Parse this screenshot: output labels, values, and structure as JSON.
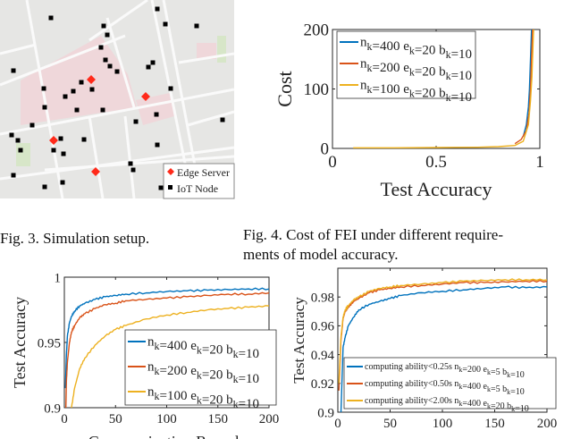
{
  "captions": {
    "fig3": "Fig. 3.  Simulation setup.",
    "fig4_line1": "Fig. 4.  Cost of FEI under different require-",
    "fig4_line2": "ments of model accuracy."
  },
  "map": {
    "legend": [
      {
        "label": "Edge Server",
        "marker": "diamond",
        "color": "#ff2a1a"
      },
      {
        "label": "IoT Node",
        "marker": "square",
        "color": "#000000"
      }
    ],
    "edge_server_count": 4,
    "iot_node_count": 40
  },
  "colors": {
    "blue": "#0072BD",
    "red": "#D95319",
    "yellow": "#EDB120"
  },
  "chart_data": [
    {
      "id": "cost",
      "type": "line",
      "xlabel": "Test Accuracy",
      "ylabel": "Cost",
      "xlim": [
        0,
        1
      ],
      "ylim": [
        0,
        200
      ],
      "xticks": [
        0,
        0.5,
        1
      ],
      "yticks": [
        0,
        100,
        200
      ],
      "xticklabels": [
        "0",
        "0.5",
        "1"
      ],
      "yticklabels": [
        "0",
        "100",
        "200"
      ],
      "legend_position": "top-left",
      "series": [
        {
          "name": "n_k=400 e_k=20 b_k=10",
          "color": "#0072BD",
          "x": [
            0.92,
            0.935,
            0.945,
            0.95,
            0.955,
            0.96
          ],
          "y": [
            20,
            40,
            70,
            100,
            150,
            200
          ]
        },
        {
          "name": "n_k=200 e_k=20 b_k=10",
          "color": "#D95319",
          "x": [
            0.88,
            0.91,
            0.935,
            0.948,
            0.955,
            0.96,
            0.965
          ],
          "y": [
            8,
            15,
            30,
            60,
            100,
            150,
            200
          ]
        },
        {
          "name": "n_k=100 e_k=20 b_k=10",
          "color": "#EDB120",
          "x": [
            0.1,
            0.3,
            0.5,
            0.7,
            0.8,
            0.88,
            0.92,
            0.945,
            0.955,
            0.962,
            0.967,
            0.97
          ],
          "y": [
            1,
            1,
            1.5,
            2,
            3,
            5,
            12,
            40,
            80,
            120,
            170,
            200
          ]
        }
      ]
    },
    {
      "id": "acc_nk",
      "type": "line",
      "xlabel": "Communication Rounds",
      "ylabel": "Test Accuracy",
      "xlim": [
        0,
        200
      ],
      "ylim": [
        0.9,
        1
      ],
      "xticks": [
        0,
        50,
        100,
        150,
        200
      ],
      "yticks": [
        0.9,
        0.95,
        1
      ],
      "xticklabels": [
        "0",
        "50",
        "100",
        "150",
        "200"
      ],
      "yticklabels": [
        "0.9",
        "0.95",
        "1"
      ],
      "legend_position": "bottom-right",
      "series": [
        {
          "name": "n_k=400 e_k=20 b_k=10",
          "color": "#0072BD",
          "x": [
            1,
            2,
            3,
            5,
            7,
            10,
            15,
            20,
            30,
            40,
            50,
            60,
            80,
            100,
            120,
            140,
            160,
            180,
            200
          ],
          "y": [
            0.915,
            0.94,
            0.955,
            0.965,
            0.97,
            0.974,
            0.978,
            0.98,
            0.983,
            0.985,
            0.986,
            0.987,
            0.988,
            0.989,
            0.9895,
            0.99,
            0.9905,
            0.991,
            0.991
          ]
        },
        {
          "name": "n_k=200 e_k=20 b_k=10",
          "color": "#D95319",
          "x": [
            1,
            2,
            3,
            5,
            7,
            10,
            15,
            20,
            30,
            40,
            50,
            60,
            80,
            100,
            120,
            140,
            160,
            180,
            200
          ],
          "y": [
            0.88,
            0.92,
            0.935,
            0.95,
            0.958,
            0.963,
            0.969,
            0.972,
            0.976,
            0.979,
            0.98,
            0.982,
            0.983,
            0.984,
            0.985,
            0.986,
            0.987,
            0.987,
            0.988
          ]
        },
        {
          "name": "n_k=100 e_k=20 b_k=10",
          "color": "#EDB120",
          "x": [
            7,
            10,
            15,
            20,
            30,
            40,
            50,
            60,
            80,
            100,
            120,
            140,
            160,
            180,
            200
          ],
          "y": [
            0.9,
            0.915,
            0.93,
            0.938,
            0.948,
            0.955,
            0.96,
            0.963,
            0.968,
            0.971,
            0.973,
            0.975,
            0.976,
            0.977,
            0.978
          ]
        }
      ]
    },
    {
      "id": "acc_compute",
      "type": "line",
      "xlabel": "",
      "ylabel": "Test Accuracy",
      "xlim": [
        0,
        200
      ],
      "ylim": [
        0.9,
        1
      ],
      "xticks": [
        0,
        50,
        100,
        150,
        200
      ],
      "yticks": [
        0.9,
        0.92,
        0.94,
        0.96,
        0.98
      ],
      "xticklabels": [
        "0",
        "50",
        "100",
        "150",
        "200"
      ],
      "yticklabels": [
        "0.9",
        "0.92",
        "0.94",
        "0.96",
        "0.98"
      ],
      "legend_position": "bottom-right",
      "series": [
        {
          "name": "computing ability<0.25s n_k=200 e_k=5   b_k=10",
          "color": "#0072BD",
          "x": [
            3,
            5,
            7,
            10,
            15,
            20,
            30,
            40,
            50,
            60,
            80,
            100,
            120,
            140,
            160,
            180,
            200
          ],
          "y": [
            0.9,
            0.945,
            0.952,
            0.96,
            0.966,
            0.971,
            0.975,
            0.977,
            0.979,
            0.981,
            0.983,
            0.984,
            0.985,
            0.986,
            0.987,
            0.9865,
            0.987
          ]
        },
        {
          "name": "computing ability<0.50s n_k=400 e_k=5   b_k=10",
          "color": "#D95319",
          "x": [
            1,
            3,
            5,
            7,
            10,
            15,
            20,
            30,
            40,
            50,
            60,
            80,
            100,
            120,
            140,
            160,
            180,
            200
          ],
          "y": [
            0.915,
            0.95,
            0.965,
            0.97,
            0.973,
            0.977,
            0.979,
            0.983,
            0.985,
            0.986,
            0.987,
            0.988,
            0.989,
            0.99,
            0.99,
            0.9905,
            0.991,
            0.991
          ]
        },
        {
          "name": "computing ability<2.00s n_k=400 e_k=20 b_k=10",
          "color": "#EDB120",
          "x": [
            1,
            3,
            5,
            7,
            10,
            15,
            20,
            30,
            40,
            50,
            60,
            80,
            100,
            120,
            140,
            160,
            180,
            200
          ],
          "y": [
            0.92,
            0.952,
            0.966,
            0.971,
            0.974,
            0.978,
            0.98,
            0.984,
            0.986,
            0.987,
            0.988,
            0.989,
            0.99,
            0.991,
            0.9915,
            0.992,
            0.992,
            0.992
          ]
        }
      ]
    }
  ]
}
